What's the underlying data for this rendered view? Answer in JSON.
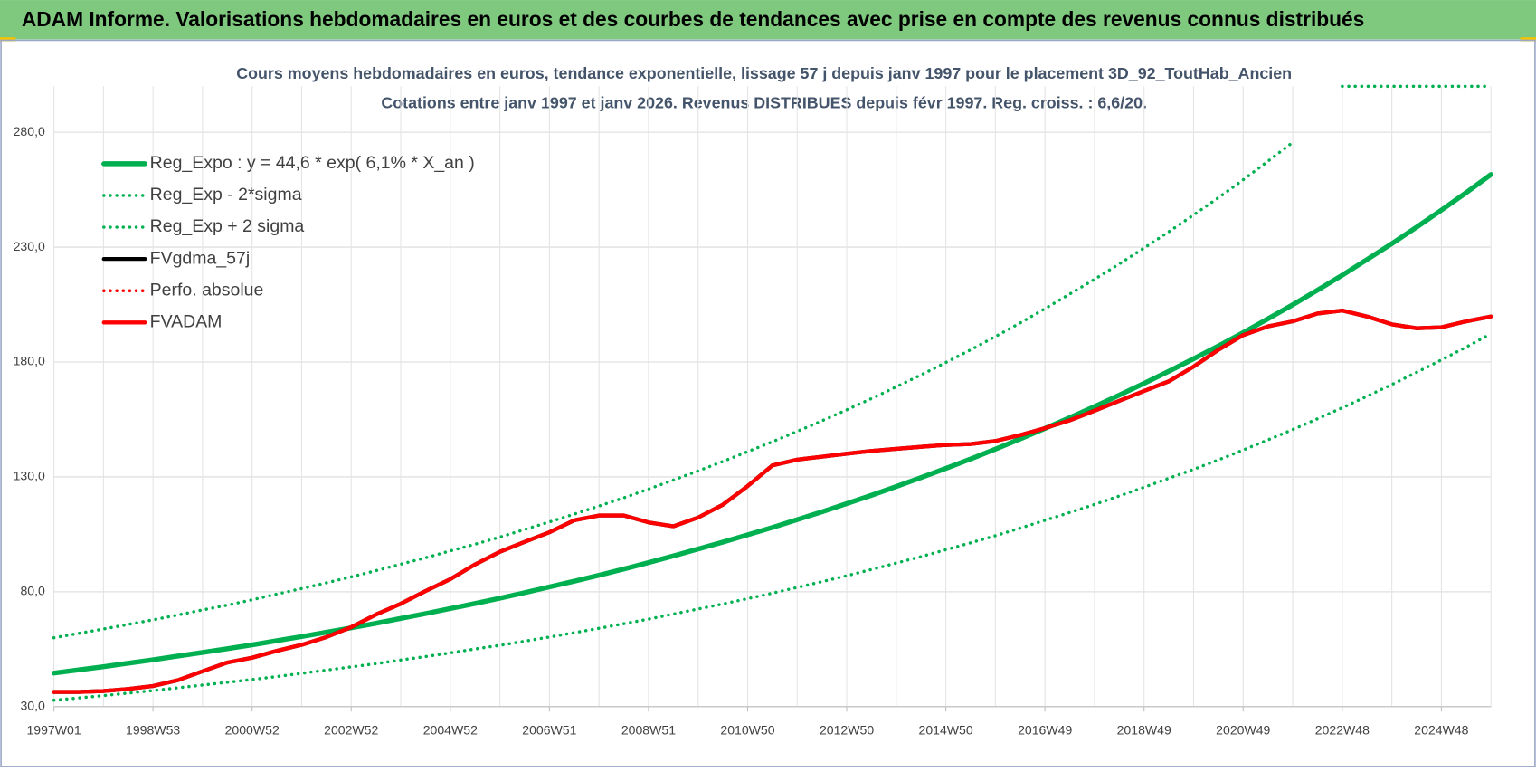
{
  "chart_data": {
    "type": "line",
    "header": "ADAM Informe. Valorisations hebdomadaires en euros et des courbes de tendances avec prise en compte des revenus connus distribués",
    "title": "Cours moyens hebdomadaires en euros, tendance exponentielle, lissage 57 j depuis janv 1997  pour le placement 3D_92_ToutHab_Ancien",
    "subtitle": "Cotations entre janv 1997 et janv 2026. Revenus DISTRIBUES depuis févr 1997. Reg. croiss. : 6,6/20.",
    "categories": [
      "1997W01",
      null,
      null,
      null,
      "1998W53",
      null,
      null,
      null,
      "2000W52",
      null,
      null,
      null,
      "2002W52",
      null,
      null,
      null,
      "2004W52",
      null,
      null,
      null,
      "2006W51",
      null,
      null,
      null,
      "2008W51",
      null,
      null,
      null,
      "2010W50",
      null,
      null,
      null,
      "2012W50",
      null,
      null,
      null,
      "2014W50",
      null,
      null,
      null,
      "2016W49",
      null,
      null,
      null,
      "2018W49",
      null,
      null,
      null,
      "2020W49",
      null,
      null,
      null,
      "2022W48",
      null,
      null,
      null,
      "2024W48",
      null,
      null
    ],
    "ylim": [
      30,
      300
    ],
    "yticks": [
      {
        "value": 30,
        "label": "30,0"
      },
      {
        "value": 80,
        "label": "80,0"
      },
      {
        "value": 130,
        "label": "130,0"
      },
      {
        "value": 180,
        "label": "180,0"
      },
      {
        "value": 230,
        "label": "230,0"
      },
      {
        "value": 280,
        "label": "280,0"
      }
    ],
    "grid": true,
    "legend": "upper left",
    "series": [
      {
        "name": "Reg_Expo : y = 44,6 * exp( 6,1% *  X_an )",
        "color": "#00b050",
        "style": "solid",
        "values": [
          44.6,
          46.0,
          47.4,
          48.9,
          50.4,
          52.0,
          53.6,
          55.2,
          56.9,
          58.7,
          60.5,
          62.4,
          64.3,
          66.3,
          68.4,
          70.5,
          72.7,
          74.9,
          77.2,
          79.6,
          82.1,
          84.6,
          87.2,
          89.9,
          92.7,
          95.6,
          98.6,
          101.6,
          104.8,
          108.0,
          111.4,
          114.8,
          118.4,
          122.0,
          125.8,
          129.7,
          133.7,
          137.8,
          142.1,
          146.5,
          151.1,
          155.8,
          160.6,
          165.6,
          170.7,
          176.0,
          181.4,
          187.0,
          192.8,
          198.8,
          204.9,
          211.3,
          217.8,
          224.6,
          231.5,
          238.7,
          246.1,
          253.7,
          261.6
        ]
      },
      {
        "name": "Reg_Exp - 2*sigma",
        "color": "#00b050",
        "style": "dotted",
        "values": [
          32.8,
          33.8,
          34.8,
          35.9,
          37.0,
          38.2,
          39.4,
          40.6,
          41.8,
          43.1,
          44.5,
          45.9,
          47.3,
          48.7,
          50.3,
          51.8,
          53.4,
          55.1,
          56.7,
          58.5,
          60.3,
          62.2,
          64.1,
          66.1,
          68.1,
          70.3,
          72.5,
          74.7,
          77.0,
          79.4,
          81.9,
          84.4,
          87.0,
          89.7,
          92.5,
          95.3,
          98.3,
          101.3,
          104.4,
          107.7,
          111.1,
          114.5,
          118.0,
          121.7,
          125.5,
          129.4,
          133.3,
          137.4,
          141.7,
          146.1,
          150.6,
          155.3,
          160.1,
          165.1,
          170.2,
          175.5,
          180.9,
          186.5,
          192.3
        ]
      },
      {
        "name": "Reg_Exp + 2 sigma",
        "color": "#00b050",
        "style": "dotted",
        "values": [
          60.0,
          61.9,
          63.8,
          65.8,
          67.8,
          69.9,
          72.1,
          74.2,
          76.5,
          79.0,
          81.4,
          83.9,
          86.5,
          89.2,
          92.0,
          94.8,
          97.8,
          100.7,
          103.8,
          107.1,
          110.4,
          113.8,
          117.3,
          120.9,
          124.7,
          128.6,
          132.6,
          136.7,
          141.0,
          145.3,
          149.8,
          154.4,
          159.2,
          164.1,
          169.2,
          174.4,
          179.8,
          185.3,
          191.1,
          197.0,
          203.2,
          209.6,
          216.0,
          222.7,
          229.6,
          236.7,
          244.0,
          251.5,
          259.3,
          267.4,
          275.6,
          null,
          300,
          300,
          300,
          300,
          300,
          300,
          300
        ]
      },
      {
        "name": "FVgdma_57j",
        "color": "#000000",
        "style": "solid",
        "values": [
          36.4,
          36.4,
          36.8,
          37.7,
          39.0,
          41.5,
          45.4,
          49.2,
          51.3,
          54.3,
          56.9,
          60.3,
          64.6,
          70.1,
          74.8,
          80.3,
          85.5,
          91.9,
          97.4,
          101.7,
          105.9,
          111.1,
          113.2,
          113.2,
          110.2,
          108.5,
          112.3,
          117.9,
          126.0,
          135.0,
          137.5,
          138.8,
          140.1,
          141.3,
          142.2,
          143.1,
          143.9,
          144.3,
          145.6,
          148.2,
          151.2,
          154.6,
          158.8,
          163.1,
          167.4,
          171.6,
          178.0,
          185.3,
          191.7,
          195.5,
          197.7,
          201.1,
          202.4,
          199.8,
          196.4,
          194.7,
          195.1,
          197.7,
          199.8
        ]
      },
      {
        "name": "Perfo. absolue",
        "color": "#ff0000",
        "style": "dotted",
        "values": [
          36.4,
          36.4,
          36.8,
          37.7,
          39.0,
          41.5,
          45.4,
          49.2,
          51.3,
          54.3,
          56.9,
          60.3,
          64.6,
          70.1,
          74.8,
          80.3,
          85.5,
          91.9,
          97.4,
          101.7,
          105.9,
          111.1,
          113.2,
          113.2,
          110.2,
          108.5,
          112.3,
          117.9,
          126.0,
          135.0,
          137.5,
          138.8,
          140.1,
          141.3,
          142.2,
          143.1,
          143.9,
          144.3,
          145.6,
          148.2,
          151.2,
          154.6,
          158.8,
          163.1,
          167.4,
          171.6,
          178.0,
          185.3,
          191.7,
          195.5,
          197.7,
          201.1,
          202.4,
          199.8,
          196.4,
          194.7,
          195.1,
          197.7,
          199.8
        ]
      },
      {
        "name": "FVADAM",
        "color": "#ff0000",
        "style": "solid",
        "values": [
          36.4,
          36.4,
          36.8,
          37.7,
          39.0,
          41.5,
          45.4,
          49.2,
          51.3,
          54.3,
          56.9,
          60.3,
          64.6,
          70.1,
          74.8,
          80.3,
          85.5,
          91.9,
          97.4,
          101.7,
          105.9,
          111.1,
          113.2,
          113.2,
          110.2,
          108.5,
          112.3,
          117.9,
          126.0,
          135.0,
          137.5,
          138.8,
          140.1,
          141.3,
          142.2,
          143.1,
          143.9,
          144.3,
          145.6,
          148.2,
          151.2,
          154.6,
          158.8,
          163.1,
          167.4,
          171.6,
          178.0,
          185.3,
          191.7,
          195.5,
          197.7,
          201.1,
          202.4,
          199.8,
          196.4,
          194.7,
          195.1,
          197.7,
          199.8
        ]
      }
    ]
  }
}
